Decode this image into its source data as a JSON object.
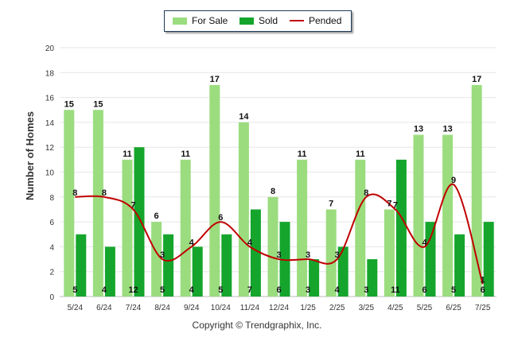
{
  "chart_data": {
    "type": "bar",
    "categories": [
      "5/24",
      "6/24",
      "7/24",
      "8/24",
      "9/24",
      "10/24",
      "11/24",
      "12/24",
      "1/25",
      "2/25",
      "3/25",
      "4/25",
      "5/25",
      "6/25",
      "7/25"
    ],
    "series": [
      {
        "name": "For Sale",
        "type": "bar",
        "color": "#9bdc7f",
        "values": [
          15,
          15,
          11,
          6,
          11,
          17,
          14,
          8,
          11,
          7,
          11,
          7,
          13,
          13,
          17
        ]
      },
      {
        "name": "Sold",
        "type": "bar",
        "color": "#15a52c",
        "values": [
          5,
          4,
          12,
          5,
          4,
          5,
          7,
          6,
          3,
          4,
          3,
          11,
          6,
          5,
          6
        ]
      },
      {
        "name": "Pended",
        "type": "line",
        "color": "#c00000",
        "values": [
          8,
          8,
          7,
          3,
          4,
          6,
          4,
          3,
          3,
          3,
          8,
          7,
          4,
          9,
          1
        ]
      }
    ],
    "ylabel": "Number of Homes",
    "ylim": [
      0,
      20
    ],
    "yticks": [
      0,
      2,
      4,
      6,
      8,
      10,
      12,
      14,
      16,
      18,
      20
    ],
    "grid": true,
    "legend": "top-center"
  },
  "footer": {
    "copyright": "Copyright © Trendgraphix, Inc."
  }
}
